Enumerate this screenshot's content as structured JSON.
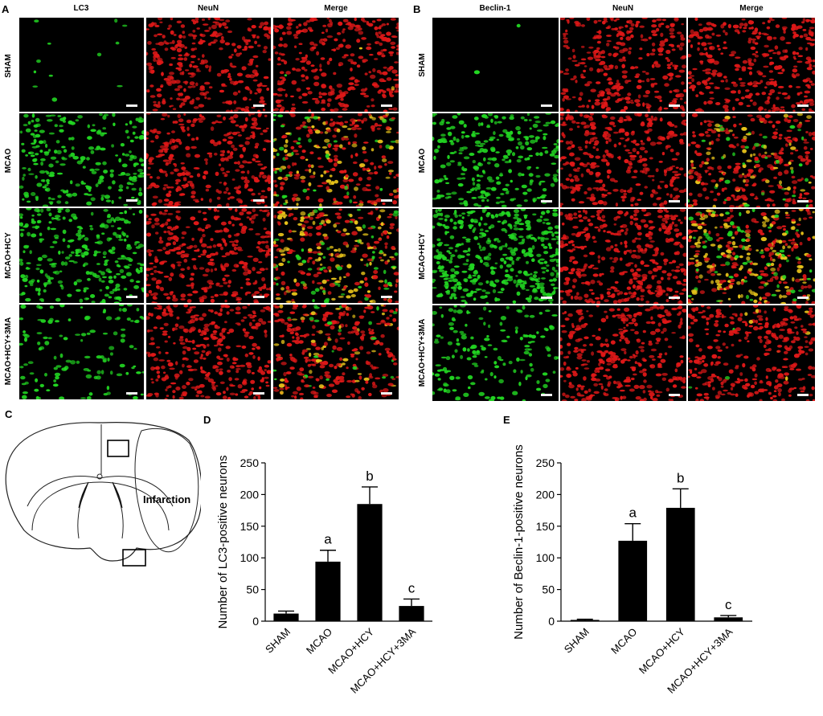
{
  "panel_letters": [
    "A",
    "B",
    "C",
    "D",
    "E"
  ],
  "figA": {
    "columns": [
      "LC3",
      "NeuN",
      "Merge"
    ],
    "rows": [
      "SHAM",
      "MCAO",
      "MCAO+HCY",
      "MCAO+HCY+3MA"
    ]
  },
  "figB": {
    "columns": [
      "Beclin-1",
      "NeuN",
      "Merge"
    ],
    "rows": [
      "SHAM",
      "MCAO",
      "MCAO+HCY",
      "MCAO+HCY+3MA"
    ]
  },
  "figC": {
    "infarction_label": "Infarction"
  },
  "colors": {
    "green": "#22d622",
    "red": "#e01818",
    "yellow": "#e6c21a",
    "bar": "#000000"
  },
  "chart_data": [
    {
      "type": "bar",
      "categories": [
        "SHAM",
        "MCAO",
        "MCAO+HCY",
        "MCAO+HCY+3MA"
      ],
      "values": [
        12,
        94,
        185,
        24
      ],
      "errors": [
        4,
        18,
        27,
        11
      ],
      "annotations": [
        "",
        "a",
        "b",
        "c"
      ],
      "ylabel": "Number of LC3-positive neurons",
      "ylim": [
        0,
        250
      ],
      "yticks": [
        0,
        50,
        100,
        150,
        200,
        250
      ]
    },
    {
      "type": "bar",
      "categories": [
        "SHAM",
        "MCAO",
        "MCAO+HCY",
        "MCAO+HCY+3MA"
      ],
      "values": [
        2,
        127,
        179,
        6
      ],
      "errors": [
        1,
        27,
        30,
        3
      ],
      "annotations": [
        "",
        "a",
        "b",
        "c"
      ],
      "ylabel": "Number of Beclin-1-positive neurons",
      "ylim": [
        0,
        250
      ],
      "yticks": [
        0,
        50,
        100,
        150,
        200,
        250
      ]
    }
  ]
}
